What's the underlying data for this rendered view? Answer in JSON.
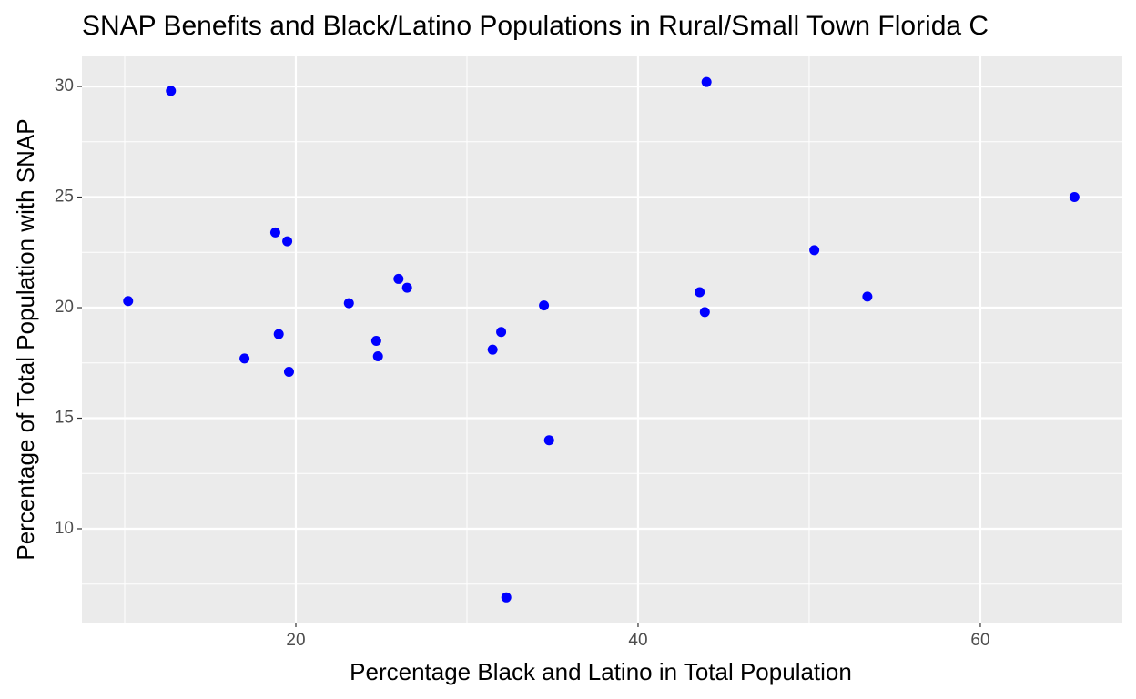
{
  "chart_data": {
    "type": "scatter",
    "title": "SNAP Benefits and Black/Latino Populations in Rural/Small Town Florida C",
    "x_label": "Percentage Black and Latino in Total Population",
    "y_label": "Percentage of Total Population with SNAP",
    "series": [
      {
        "color": "#0000ff",
        "x": [
          10.2,
          12.7,
          17.0,
          18.8,
          19.0,
          19.5,
          19.6,
          23.1,
          24.7,
          24.8,
          26.0,
          26.5,
          31.5,
          32.0,
          32.3,
          34.5,
          34.8,
          43.6,
          43.9,
          44.0,
          50.3,
          53.4,
          65.5
        ],
        "values": [
          20.3,
          29.8,
          17.7,
          23.4,
          18.8,
          23.0,
          17.1,
          20.2,
          18.5,
          17.8,
          21.3,
          20.9,
          18.1,
          18.9,
          6.9,
          20.1,
          14.0,
          20.7,
          19.8,
          30.2,
          22.6,
          20.5,
          25.0
        ]
      }
    ],
    "xlim": [
      7.5,
      68.3
    ],
    "xticks": [
      20,
      40,
      60
    ],
    "xminor": [
      10,
      30,
      50
    ],
    "ylim": [
      5.76,
      31.36
    ],
    "yticks": [
      10,
      15,
      20,
      25,
      30
    ],
    "yminor": [
      7.5,
      12.5,
      17.5,
      22.5,
      27.5
    ],
    "grid": true
  }
}
